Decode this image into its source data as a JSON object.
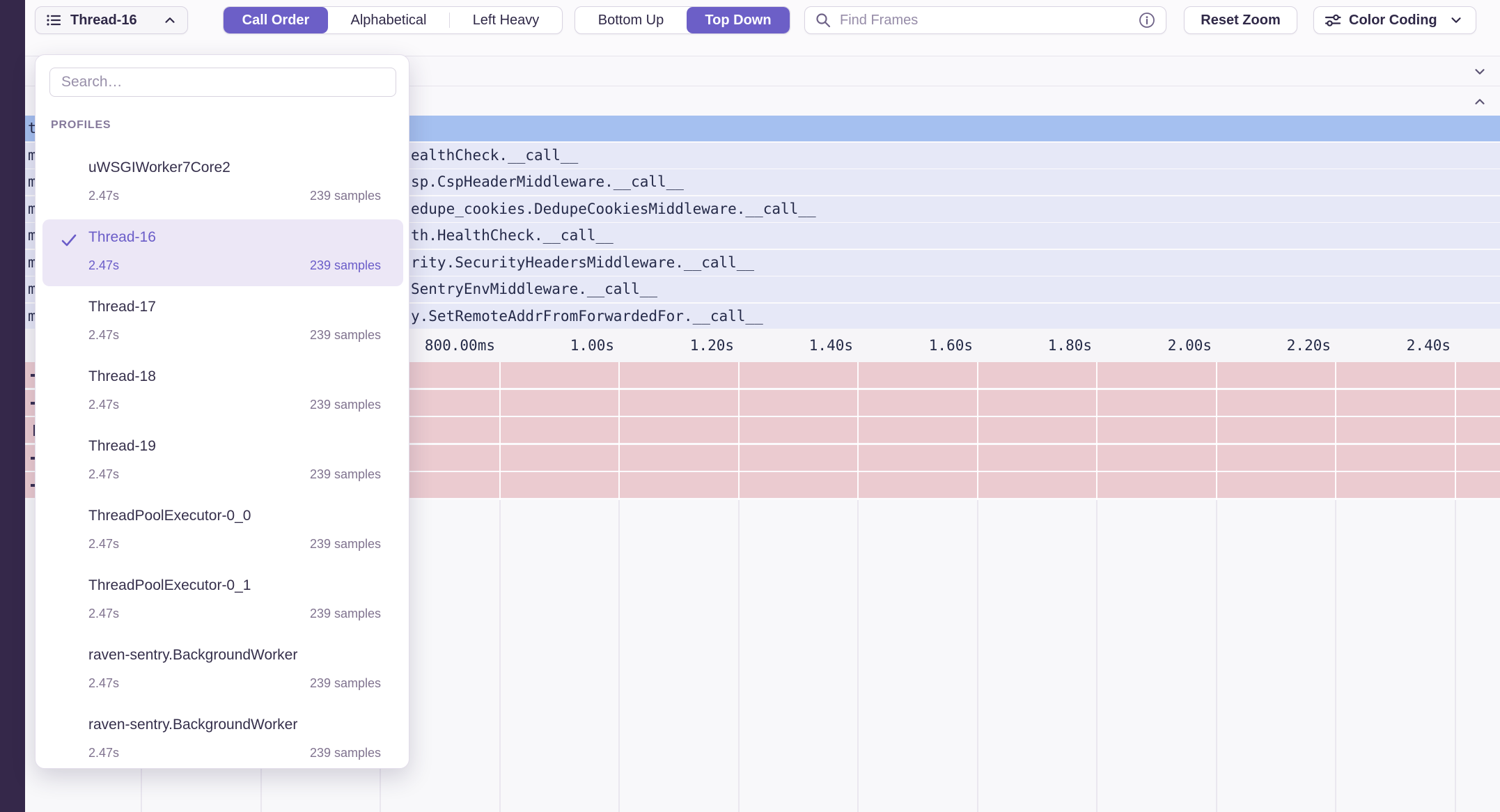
{
  "toolbar": {
    "thread_selector": {
      "label": "Thread-16"
    },
    "sort_control": {
      "options": [
        "Call Order",
        "Alphabetical",
        "Left Heavy"
      ],
      "active": "Call Order"
    },
    "direction_control": {
      "options": [
        "Bottom Up",
        "Top Down"
      ],
      "active": "Top Down"
    },
    "find_frames": {
      "placeholder": "Find Frames"
    },
    "reset_zoom_label": "Reset Zoom",
    "color_coding_label": "Color Coding"
  },
  "dropdown": {
    "search_placeholder": "Search…",
    "section_label": "PROFILES",
    "items": [
      {
        "name": "uWSGIWorker7Core2",
        "duration": "2.47s",
        "samples": "239 samples",
        "selected": false
      },
      {
        "name": "Thread-16",
        "duration": "2.47s",
        "samples": "239 samples",
        "selected": true
      },
      {
        "name": "Thread-17",
        "duration": "2.47s",
        "samples": "239 samples",
        "selected": false
      },
      {
        "name": "Thread-18",
        "duration": "2.47s",
        "samples": "239 samples",
        "selected": false
      },
      {
        "name": "Thread-19",
        "duration": "2.47s",
        "samples": "239 samples",
        "selected": false
      },
      {
        "name": "ThreadPoolExecutor-0_0",
        "duration": "2.47s",
        "samples": "239 samples",
        "selected": false
      },
      {
        "name": "ThreadPoolExecutor-0_1",
        "duration": "2.47s",
        "samples": "239 samples",
        "selected": false
      },
      {
        "name": "raven-sentry.BackgroundWorker",
        "duration": "2.47s",
        "samples": "239 samples",
        "selected": false
      },
      {
        "name": "raven-sentry.BackgroundWorker",
        "duration": "2.47s",
        "samples": "239 samples",
        "selected": false
      }
    ]
  },
  "flamegraph": {
    "selected_row_left_fragment": "t",
    "frame_left_fragments": [
      "m",
      "m",
      "m",
      "m",
      "m",
      "m",
      "m"
    ],
    "frames": [
      "ealthCheck.__call__",
      "sp.CspHeaderMiddleware.__call__",
      "edupe_cookies.DedupeCookiesMiddleware.__call__",
      "th.HealthCheck.__call__",
      "rity.SecurityHeadersMiddleware.__call__",
      "SentryEnvMiddleware.__call__",
      "y.SetRemoteAddrFromForwardedFor.__call__"
    ],
    "axis_ticks": [
      "800.00ms",
      "1.00s",
      "1.20s",
      "1.40s",
      "1.60s",
      "1.80s",
      "2.00s",
      "2.20s",
      "2.40s"
    ]
  },
  "colors": {
    "accent_purple": "#6C5FC7",
    "selected_row_blue": "#A5C0F0",
    "frame_row_lavender": "#E6E8F7",
    "minimap_pink": "#EBCBD0",
    "sidebar_dark": "#35284A",
    "selected_item_bg": "#ECE7F6"
  }
}
